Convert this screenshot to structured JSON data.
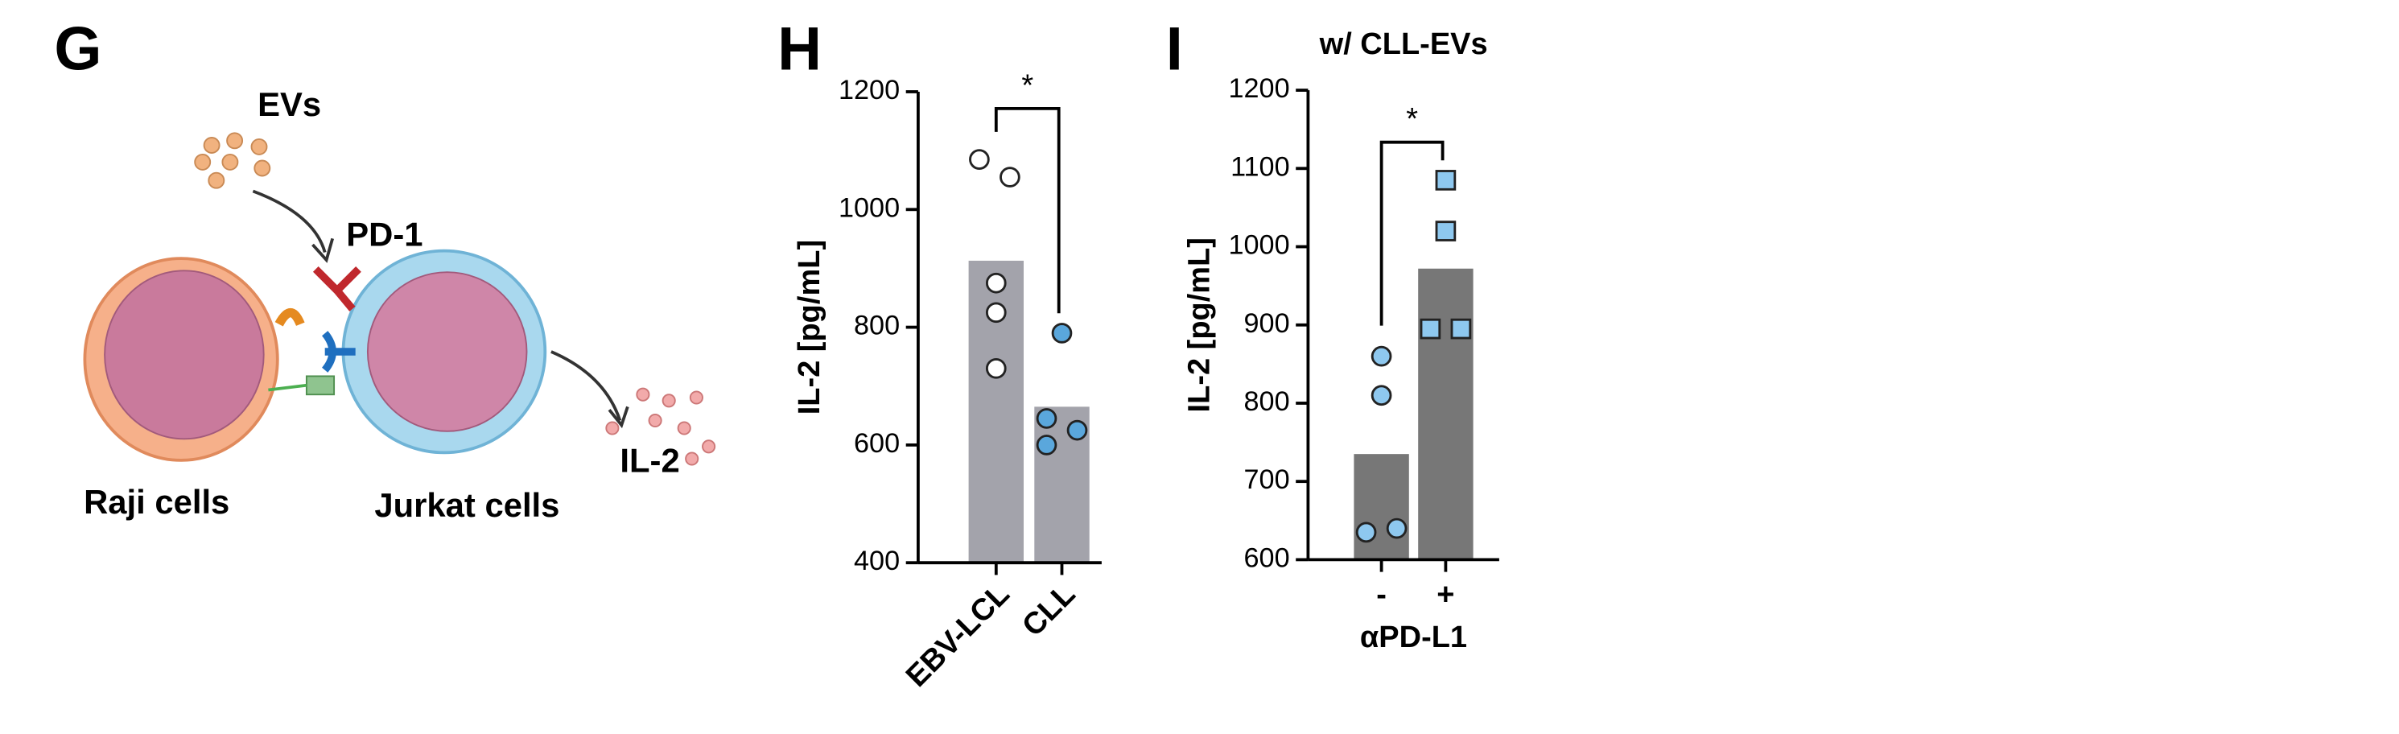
{
  "diagram": {
    "panel": "G",
    "labels": {
      "evs": "EVs",
      "pd1": "PD-1",
      "il2": "IL-2",
      "raji": "Raji cells",
      "jurkat": "Jurkat cells"
    }
  },
  "chart_data": [
    {
      "type": "bar",
      "panel": "H",
      "y_label": "IL-2 [pg/mL]",
      "categories": [
        "EBV-LCL",
        "CLL"
      ],
      "values": [
        913,
        665
      ],
      "bar_color": "#a3a3ab",
      "points": [
        [
          1085,
          1055,
          875,
          825,
          730
        ],
        [
          790,
          645,
          625,
          600
        ]
      ],
      "point_colors": [
        "#ffffff",
        "#5aa7dc"
      ],
      "marker": "circle",
      "significance": "*",
      "ylim": [
        400,
        1200
      ],
      "yticks": [
        400,
        600,
        800,
        1000,
        1200
      ]
    },
    {
      "type": "bar",
      "panel": "I",
      "title": "w/ CLL-EVs",
      "y_label": "IL-2 [pg/mL]",
      "x_label": "αPD-L1",
      "categories": [
        "-",
        "+"
      ],
      "values": [
        735,
        972
      ],
      "bar_color": "#777777",
      "points": [
        [
          860,
          810,
          635,
          640
        ],
        [
          1085,
          1020,
          895,
          895
        ]
      ],
      "point_colors": [
        "#8ec8ef",
        "#8ec8ef"
      ],
      "markers": [
        "circle",
        "square"
      ],
      "significance": "*",
      "ylim": [
        600,
        1200
      ],
      "yticks": [
        600,
        700,
        800,
        900,
        1000,
        1100,
        1200
      ]
    }
  ]
}
